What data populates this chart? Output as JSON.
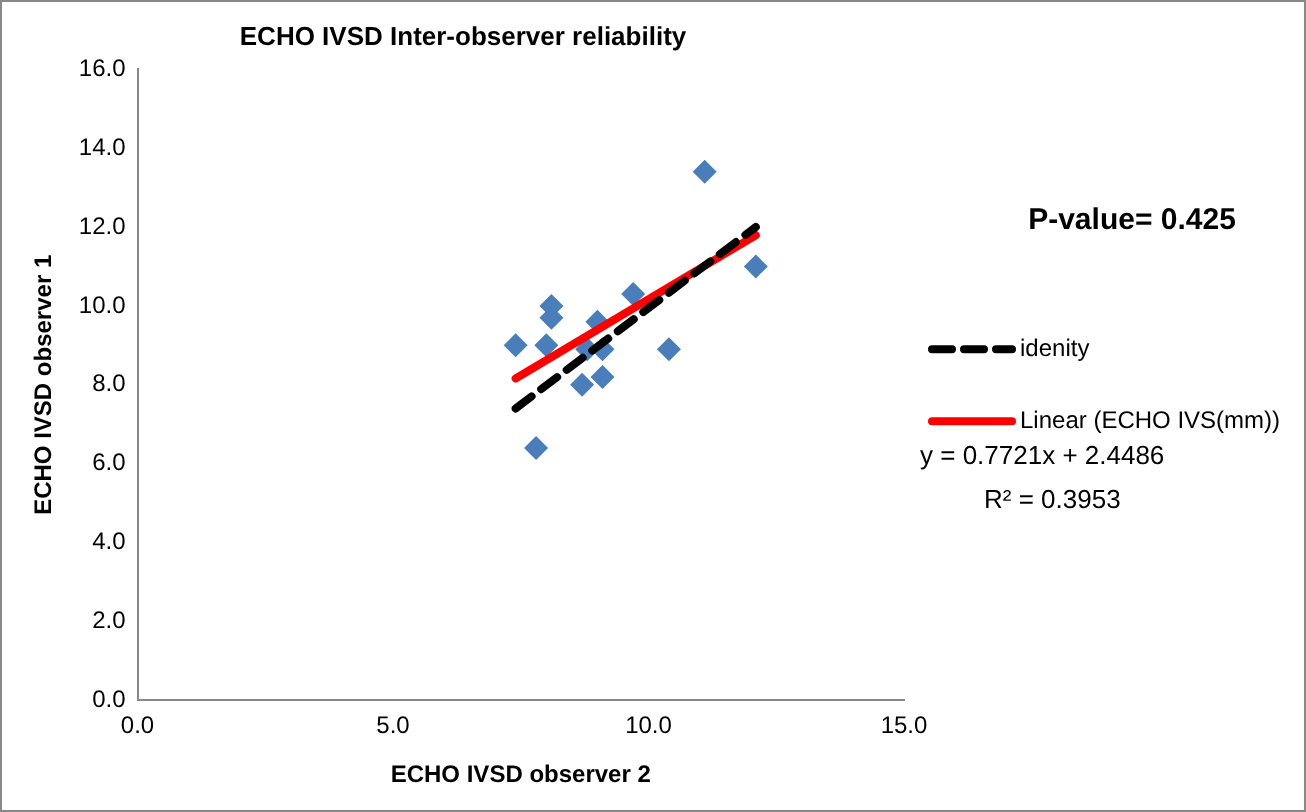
{
  "chart_data": {
    "type": "scatter",
    "title": "ECHO IVSD Inter-observer reliability",
    "xlabel": "ECHO IVSD observer 2",
    "ylabel": "ECHO IVSD observer 1",
    "xlim": [
      0,
      15
    ],
    "xticks": [
      {
        "value": 0,
        "label": "0.0"
      },
      {
        "value": 5,
        "label": "5.0"
      },
      {
        "value": 10,
        "label": "10.0"
      },
      {
        "value": 15,
        "label": "15.0"
      }
    ],
    "ylim": [
      0,
      16
    ],
    "yticks": [
      {
        "value": 0,
        "label": "0.0"
      },
      {
        "value": 2,
        "label": "2.0"
      },
      {
        "value": 4,
        "label": "4.0"
      },
      {
        "value": 6,
        "label": "6.0"
      },
      {
        "value": 8,
        "label": "8.0"
      },
      {
        "value": 10,
        "label": "10.0"
      },
      {
        "value": 12,
        "label": "12.0"
      },
      {
        "value": 14,
        "label": "14.0"
      },
      {
        "value": 16,
        "label": "16.0"
      }
    ],
    "grid": false,
    "legend": "right",
    "series": [
      {
        "color": "#4a7ebb",
        "marker": "diamond",
        "x": [
          11.1,
          12.1,
          7.4,
          8,
          8.1,
          8.1,
          9.7,
          9,
          9.1,
          8.8,
          10.4,
          8.7,
          9.1,
          7.8
        ],
        "values": [
          13.4,
          11,
          9,
          9,
          10,
          9.7,
          10.3,
          9.6,
          8.9,
          8.9,
          8.9,
          8,
          8.2,
          6.4
        ]
      },
      {
        "type": "line",
        "name": "idenity",
        "color": "#000000",
        "line_style": "dashed",
        "marker": "none",
        "x": [
          7.4,
          12.1
        ],
        "values": [
          7.4,
          12
        ]
      },
      {
        "type": "line",
        "name": "Linear (ECHO IVS(mm))",
        "color": "#ff0000",
        "line_style": "solid",
        "marker": "none",
        "x": [
          7.4,
          12.1
        ],
        "values": [
          8.16,
          11.79
        ]
      }
    ],
    "annotations": [
      "P-value= 0.425",
      "y = 0.7721x + 2.4486",
      "R² = 0.3953"
    ]
  }
}
